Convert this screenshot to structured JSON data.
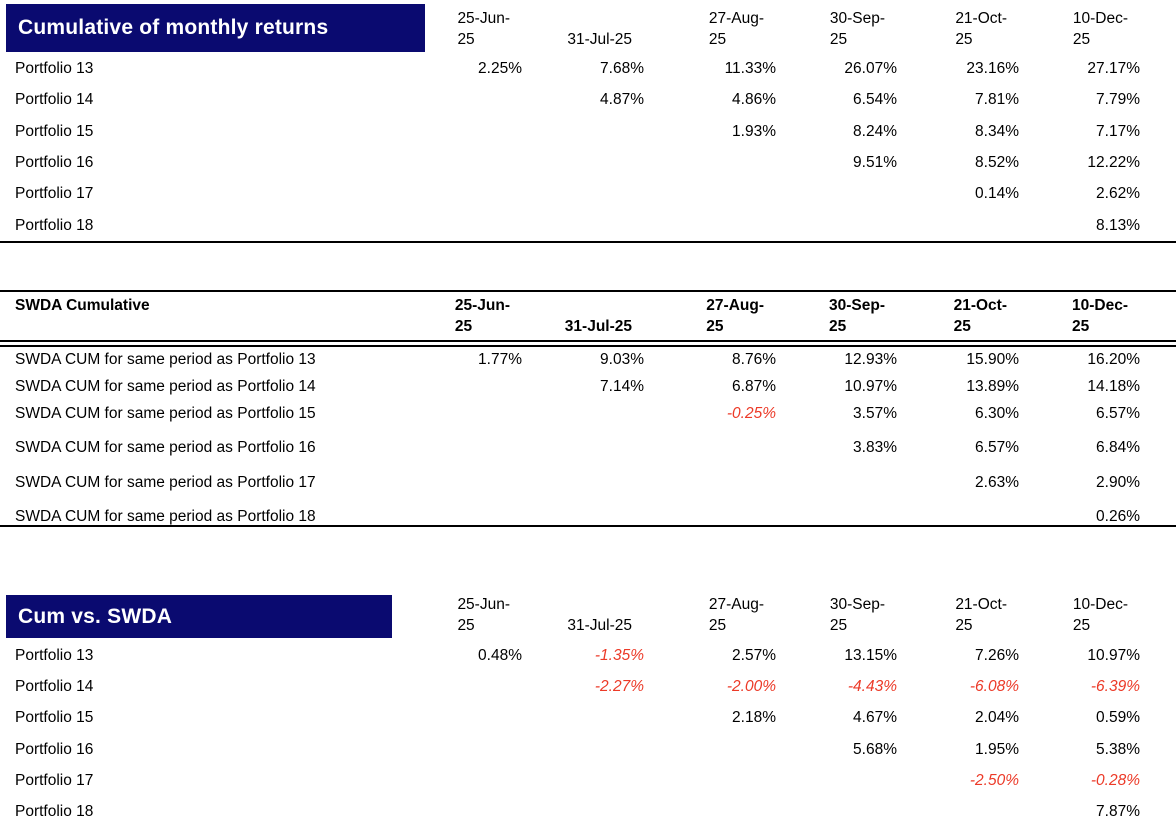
{
  "colors": {
    "banner_navy": "#0a0a70",
    "negative_red": "#ec3a28"
  },
  "columns": [
    {
      "label": "25-Jun-25",
      "display": "25-Jun-\n25"
    },
    {
      "label": "31-Jul-25",
      "display": "31-Jul-25"
    },
    {
      "label": "27-Aug-25",
      "display": "27-Aug-\n25"
    },
    {
      "label": "30-Sep-25",
      "display": "30-Sep-\n25"
    },
    {
      "label": "21-Oct-25",
      "display": "21-Oct-\n25"
    },
    {
      "label": "10-Dec-25",
      "display": "10-Dec-\n25"
    }
  ],
  "tables": [
    {
      "id": "cumulative-monthly-returns",
      "title": "Cumulative of monthly returns",
      "header_style": "banner",
      "rows": [
        {
          "label": "Portfolio 13",
          "values": [
            "2.25%",
            "7.68%",
            "11.33%",
            "26.07%",
            "23.16%",
            "27.17%"
          ]
        },
        {
          "label": "Portfolio 14",
          "values": [
            "",
            "4.87%",
            "4.86%",
            "6.54%",
            "7.81%",
            "7.79%"
          ]
        },
        {
          "label": "Portfolio 15",
          "values": [
            "",
            "",
            "1.93%",
            "8.24%",
            "8.34%",
            "7.17%"
          ]
        },
        {
          "label": "Portfolio 16",
          "values": [
            "",
            "",
            "",
            "9.51%",
            "8.52%",
            "12.22%"
          ]
        },
        {
          "label": "Portfolio 17",
          "values": [
            "",
            "",
            "",
            "",
            "0.14%",
            "2.62%"
          ]
        },
        {
          "label": "Portfolio 18",
          "values": [
            "",
            "",
            "",
            "",
            "",
            "8.13%"
          ]
        }
      ]
    },
    {
      "id": "swda-cumulative",
      "title": "SWDA Cumulative",
      "header_style": "ruled",
      "rows": [
        {
          "label": "SWDA CUM for same period as Portfolio 13",
          "values": [
            "1.77%",
            "9.03%",
            "8.76%",
            "12.93%",
            "15.90%",
            "16.20%"
          ]
        },
        {
          "label": "SWDA CUM for same period as Portfolio 14",
          "values": [
            "",
            "7.14%",
            "6.87%",
            "10.97%",
            "13.89%",
            "14.18%"
          ]
        },
        {
          "label": "SWDA CUM for same period as Portfolio 15",
          "values": [
            "",
            "",
            "-0.25%",
            "3.57%",
            "6.30%",
            "6.57%"
          ]
        },
        {
          "label": "SWDA CUM for same period as Portfolio 16",
          "values": [
            "",
            "",
            "",
            "3.83%",
            "6.57%",
            "6.84%"
          ]
        },
        {
          "label": "SWDA CUM for same period as Portfolio 17",
          "values": [
            "",
            "",
            "",
            "",
            "2.63%",
            "2.90%"
          ]
        },
        {
          "label": "SWDA CUM for same period as Portfolio 18",
          "values": [
            "",
            "",
            "",
            "",
            "",
            "0.26%"
          ]
        }
      ]
    },
    {
      "id": "cum-vs-swda",
      "title": "Cum vs. SWDA",
      "header_style": "banner",
      "rows": [
        {
          "label": "Portfolio 13",
          "values": [
            "0.48%",
            "-1.35%",
            "2.57%",
            "13.15%",
            "7.26%",
            "10.97%"
          ]
        },
        {
          "label": "Portfolio 14",
          "values": [
            "",
            "-2.27%",
            "-2.00%",
            "-4.43%",
            "-6.08%",
            "-6.39%"
          ]
        },
        {
          "label": "Portfolio 15",
          "values": [
            "",
            "",
            "2.18%",
            "4.67%",
            "2.04%",
            "0.59%"
          ]
        },
        {
          "label": "Portfolio 16",
          "values": [
            "",
            "",
            "",
            "5.68%",
            "1.95%",
            "5.38%"
          ]
        },
        {
          "label": "Portfolio 17",
          "values": [
            "",
            "",
            "",
            "",
            "-2.50%",
            "-0.28%"
          ]
        },
        {
          "label": "Portfolio 18",
          "values": [
            "",
            "",
            "",
            "",
            "",
            "7.87%"
          ]
        }
      ]
    }
  ]
}
